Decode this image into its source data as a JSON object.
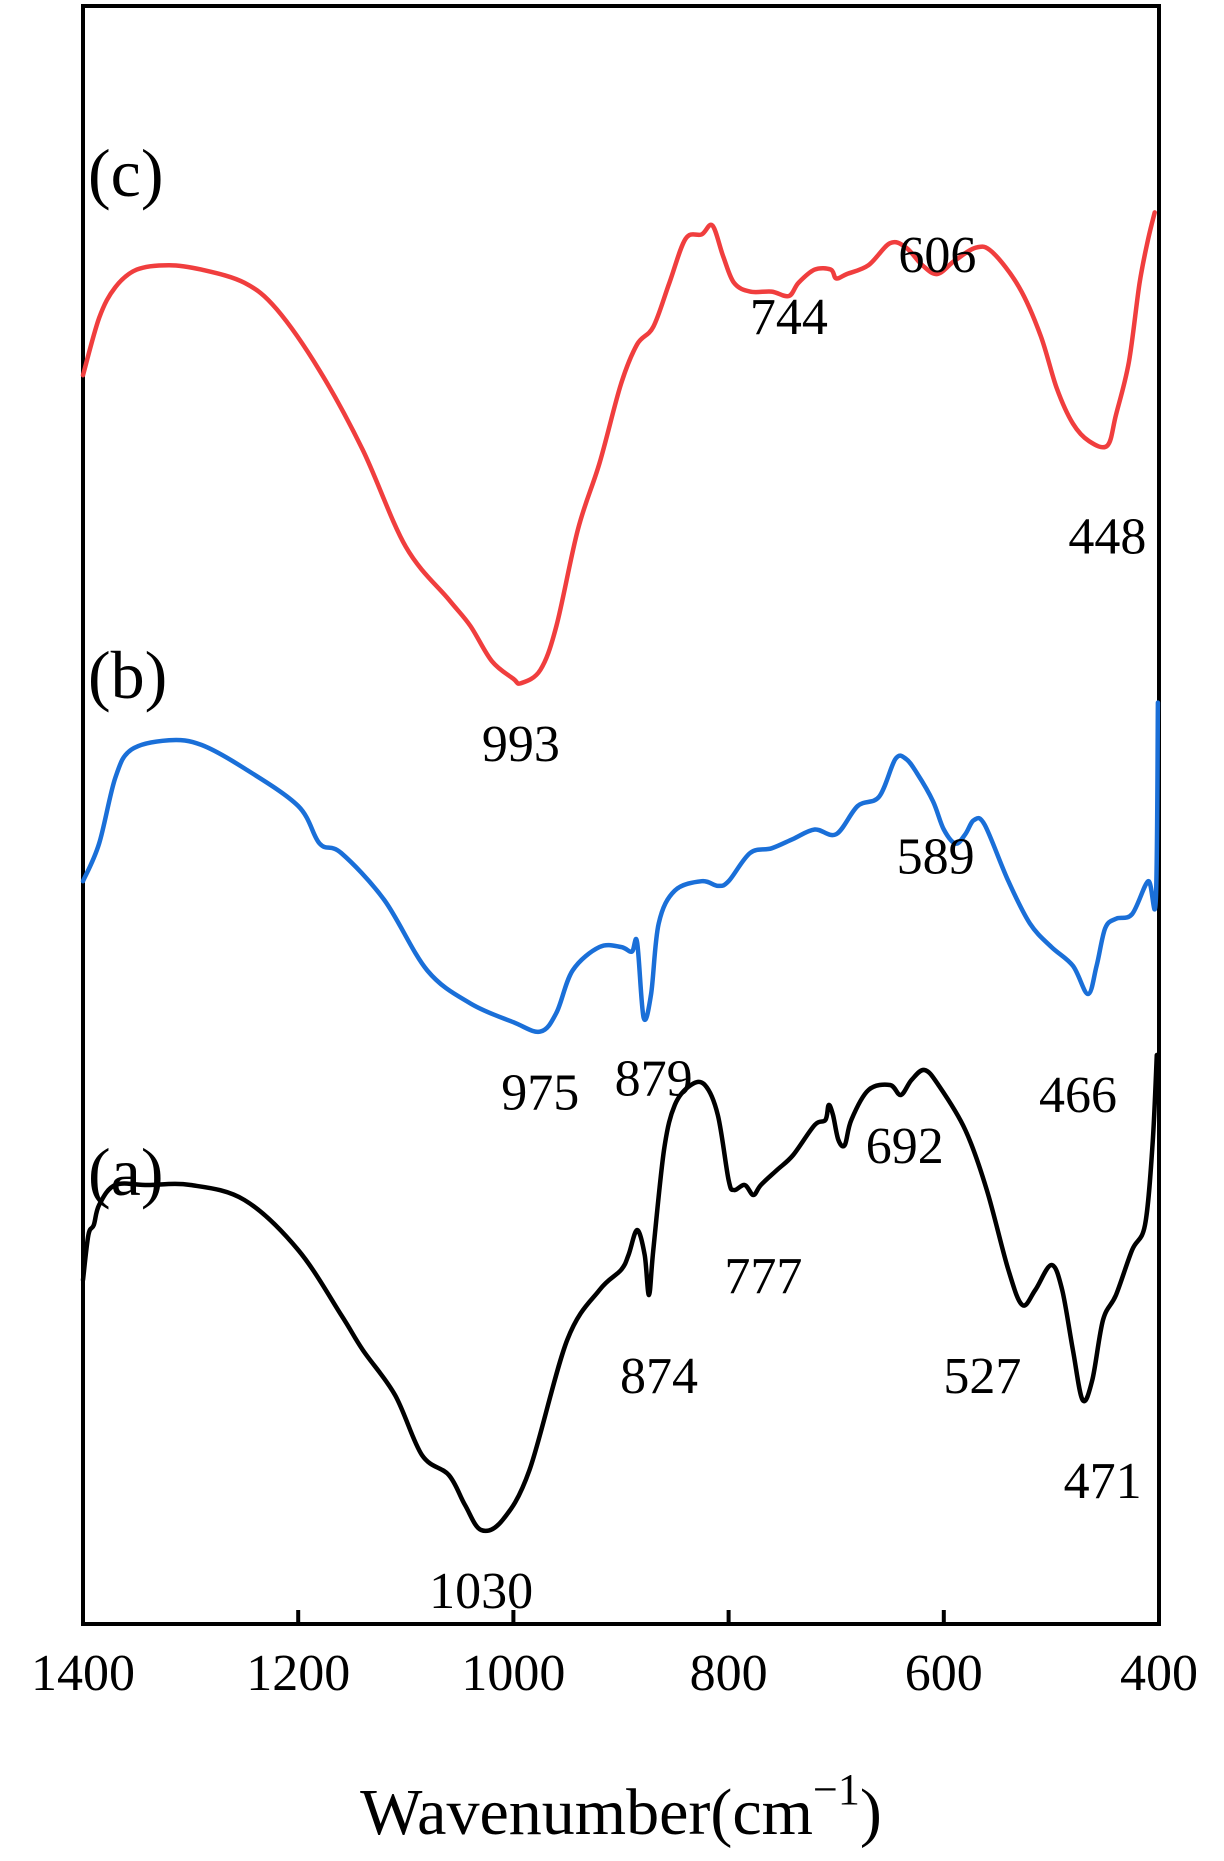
{
  "chart_data": {
    "type": "line",
    "xlabel_main": "Wavenumber(cm",
    "xlabel_sup": "−1",
    "xlabel_close": ")",
    "ylabel": "",
    "xlim": [
      1400,
      400
    ],
    "x_reversed": true,
    "grid": false,
    "xticks": [
      1400,
      1200,
      1000,
      800,
      600,
      400
    ],
    "xtick_labels": [
      "1400",
      "1200",
      "1000",
      "800",
      "600",
      "400"
    ],
    "panel_labels": [
      "(a)",
      "(b)",
      "(c)"
    ],
    "y_scale": "arbitrary (stacked spectra, offset for clarity)",
    "series": [
      {
        "name": "(a)",
        "color": "#000000",
        "points": [
          [
            1400,
            0.07
          ],
          [
            1395,
            0.16
          ],
          [
            1390,
            0.18
          ],
          [
            1385,
            0.22
          ],
          [
            1370,
            0.26
          ],
          [
            1340,
            0.26
          ],
          [
            1300,
            0.26
          ],
          [
            1250,
            0.23
          ],
          [
            1200,
            0.13
          ],
          [
            1160,
            0.0
          ],
          [
            1140,
            -0.07
          ],
          [
            1110,
            -0.16
          ],
          [
            1085,
            -0.28
          ],
          [
            1060,
            -0.32
          ],
          [
            1045,
            -0.38
          ],
          [
            1030,
            -0.43
          ],
          [
            1010,
            -0.41
          ],
          [
            985,
            -0.31
          ],
          [
            950,
            -0.05
          ],
          [
            920,
            0.05
          ],
          [
            900,
            0.09
          ],
          [
            893,
            0.12
          ],
          [
            885,
            0.17
          ],
          [
            878,
            0.12
          ],
          [
            874,
            0.04
          ],
          [
            870,
            0.13
          ],
          [
            860,
            0.33
          ],
          [
            850,
            0.42
          ],
          [
            835,
            0.46
          ],
          [
            822,
            0.46
          ],
          [
            810,
            0.4
          ],
          [
            800,
            0.27
          ],
          [
            795,
            0.25
          ],
          [
            785,
            0.26
          ],
          [
            777,
            0.24
          ],
          [
            770,
            0.26
          ],
          [
            755,
            0.29
          ],
          [
            740,
            0.32
          ],
          [
            720,
            0.38
          ],
          [
            710,
            0.39
          ],
          [
            707,
            0.42
          ],
          [
            703,
            0.4
          ],
          [
            698,
            0.35
          ],
          [
            692,
            0.34
          ],
          [
            686,
            0.39
          ],
          [
            670,
            0.45
          ],
          [
            650,
            0.46
          ],
          [
            640,
            0.44
          ],
          [
            630,
            0.47
          ],
          [
            618,
            0.49
          ],
          [
            605,
            0.46
          ],
          [
            580,
            0.37
          ],
          [
            560,
            0.25
          ],
          [
            540,
            0.09
          ],
          [
            527,
            0.02
          ],
          [
            515,
            0.05
          ],
          [
            500,
            0.1
          ],
          [
            490,
            0.05
          ],
          [
            480,
            -0.07
          ],
          [
            471,
            -0.17
          ],
          [
            462,
            -0.13
          ],
          [
            452,
            -0.01
          ],
          [
            440,
            0.04
          ],
          [
            425,
            0.13
          ],
          [
            413,
            0.18
          ],
          [
            406,
            0.34
          ],
          [
            402,
            0.52
          ]
        ]
      },
      {
        "name": "(b)",
        "color": "#1a6fd8",
        "points": [
          [
            1400,
            0.04
          ],
          [
            1385,
            0.12
          ],
          [
            1370,
            0.26
          ],
          [
            1355,
            0.32
          ],
          [
            1320,
            0.34
          ],
          [
            1290,
            0.33
          ],
          [
            1250,
            0.28
          ],
          [
            1200,
            0.2
          ],
          [
            1180,
            0.12
          ],
          [
            1160,
            0.1
          ],
          [
            1120,
            0.0
          ],
          [
            1080,
            -0.15
          ],
          [
            1040,
            -0.22
          ],
          [
            1000,
            -0.26
          ],
          [
            975,
            -0.28
          ],
          [
            960,
            -0.24
          ],
          [
            945,
            -0.15
          ],
          [
            920,
            -0.1
          ],
          [
            900,
            -0.1
          ],
          [
            890,
            -0.11
          ],
          [
            885,
            -0.09
          ],
          [
            879,
            -0.25
          ],
          [
            872,
            -0.2
          ],
          [
            865,
            -0.05
          ],
          [
            850,
            0.02
          ],
          [
            825,
            0.04
          ],
          [
            810,
            0.03
          ],
          [
            800,
            0.04
          ],
          [
            780,
            0.1
          ],
          [
            760,
            0.11
          ],
          [
            740,
            0.13
          ],
          [
            720,
            0.15
          ],
          [
            700,
            0.14
          ],
          [
            680,
            0.2
          ],
          [
            660,
            0.22
          ],
          [
            645,
            0.3
          ],
          [
            635,
            0.3
          ],
          [
            625,
            0.27
          ],
          [
            610,
            0.21
          ],
          [
            600,
            0.15
          ],
          [
            589,
            0.12
          ],
          [
            580,
            0.14
          ],
          [
            572,
            0.17
          ],
          [
            562,
            0.16
          ],
          [
            540,
            0.04
          ],
          [
            520,
            -0.05
          ],
          [
            500,
            -0.1
          ],
          [
            480,
            -0.14
          ],
          [
            466,
            -0.2
          ],
          [
            458,
            -0.14
          ],
          [
            450,
            -0.06
          ],
          [
            440,
            -0.04
          ],
          [
            425,
            -0.03
          ],
          [
            410,
            0.04
          ],
          [
            403,
            0.0
          ],
          [
            401,
            0.42
          ]
        ]
      },
      {
        "name": "(c)",
        "color": "#f03e3e",
        "points": [
          [
            1400,
            0.17
          ],
          [
            1385,
            0.3
          ],
          [
            1370,
            0.37
          ],
          [
            1350,
            0.41
          ],
          [
            1320,
            0.42
          ],
          [
            1290,
            0.41
          ],
          [
            1250,
            0.38
          ],
          [
            1220,
            0.32
          ],
          [
            1180,
            0.18
          ],
          [
            1140,
            0.0
          ],
          [
            1100,
            -0.22
          ],
          [
            1060,
            -0.34
          ],
          [
            1040,
            -0.4
          ],
          [
            1020,
            -0.48
          ],
          [
            1000,
            -0.52
          ],
          [
            993,
            -0.53
          ],
          [
            975,
            -0.5
          ],
          [
            960,
            -0.4
          ],
          [
            940,
            -0.18
          ],
          [
            920,
            -0.03
          ],
          [
            900,
            0.15
          ],
          [
            885,
            0.24
          ],
          [
            870,
            0.28
          ],
          [
            855,
            0.38
          ],
          [
            840,
            0.48
          ],
          [
            825,
            0.49
          ],
          [
            815,
            0.51
          ],
          [
            805,
            0.44
          ],
          [
            795,
            0.38
          ],
          [
            780,
            0.36
          ],
          [
            760,
            0.36
          ],
          [
            744,
            0.35
          ],
          [
            735,
            0.38
          ],
          [
            720,
            0.41
          ],
          [
            705,
            0.41
          ],
          [
            700,
            0.39
          ],
          [
            690,
            0.4
          ],
          [
            670,
            0.42
          ],
          [
            650,
            0.47
          ],
          [
            635,
            0.46
          ],
          [
            620,
            0.42
          ],
          [
            606,
            0.4
          ],
          [
            590,
            0.43
          ],
          [
            570,
            0.46
          ],
          [
            555,
            0.45
          ],
          [
            530,
            0.37
          ],
          [
            510,
            0.26
          ],
          [
            495,
            0.14
          ],
          [
            480,
            0.06
          ],
          [
            465,
            0.02
          ],
          [
            448,
            0.01
          ],
          [
            440,
            0.08
          ],
          [
            428,
            0.2
          ],
          [
            418,
            0.38
          ],
          [
            410,
            0.48
          ],
          [
            404,
            0.54
          ]
        ]
      }
    ],
    "annotations": [
      {
        "series": "(a)",
        "text": "1030",
        "x": 1030
      },
      {
        "series": "(a)",
        "text": "874",
        "x": 874
      },
      {
        "series": "(a)",
        "text": "777",
        "x": 777
      },
      {
        "series": "(a)",
        "text": "692",
        "x": 692
      },
      {
        "series": "(a)",
        "text": "527",
        "x": 527
      },
      {
        "series": "(a)",
        "text": "471",
        "x": 471
      },
      {
        "series": "(b)",
        "text": "975",
        "x": 975
      },
      {
        "series": "(b)",
        "text": "879",
        "x": 879
      },
      {
        "series": "(b)",
        "text": "589",
        "x": 589
      },
      {
        "series": "(b)",
        "text": "466",
        "x": 466
      },
      {
        "series": "(c)",
        "text": "993",
        "x": 993
      },
      {
        "series": "(c)",
        "text": "744",
        "x": 744
      },
      {
        "series": "(c)",
        "text": "606",
        "x": 606
      },
      {
        "series": "(c)",
        "text": "448",
        "x": 448
      }
    ]
  }
}
